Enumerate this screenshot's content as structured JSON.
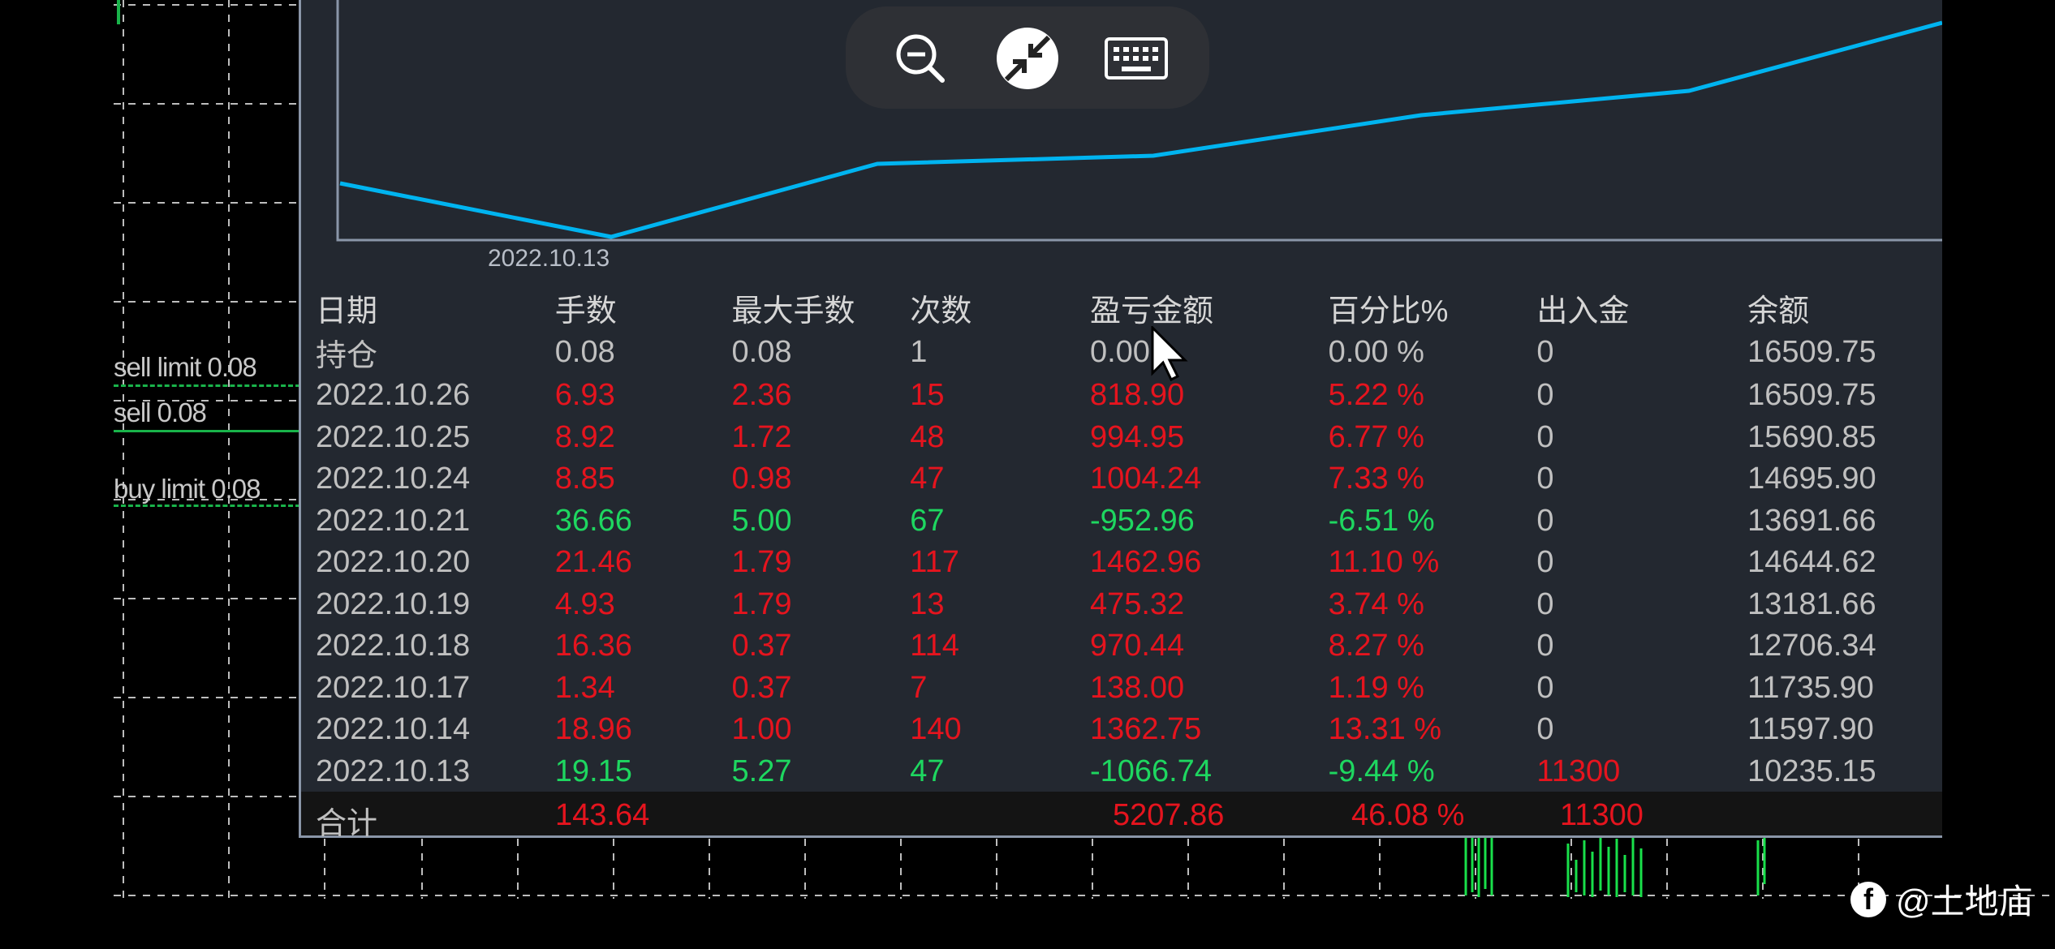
{
  "chart": {
    "date_label": "2022.10.13",
    "line_color": "#00b4f0"
  },
  "orders": [
    {
      "label": "sell limit 0.08"
    },
    {
      "label": "sell 0.08"
    },
    {
      "label": "buy limit 0.08"
    }
  ],
  "table": {
    "headers": [
      "日期",
      "手数",
      "最大手数",
      "次数",
      "盈亏金额",
      "百分比%",
      "出入金",
      "余额"
    ],
    "rows": [
      {
        "date": "持仓",
        "lots": "0.08",
        "max_lots": "0.08",
        "count": "1",
        "pnl": "0.00",
        "percent": "0.00 %",
        "deposit": "0",
        "balance": "16509.75",
        "tone": "neutral"
      },
      {
        "date": "2022.10.26",
        "lots": "6.93",
        "max_lots": "2.36",
        "count": "15",
        "pnl": "818.90",
        "percent": "5.22 %",
        "deposit": "0",
        "balance": "16509.75",
        "tone": "red"
      },
      {
        "date": "2022.10.25",
        "lots": "8.92",
        "max_lots": "1.72",
        "count": "48",
        "pnl": "994.95",
        "percent": "6.77 %",
        "deposit": "0",
        "balance": "15690.85",
        "tone": "red"
      },
      {
        "date": "2022.10.24",
        "lots": "8.85",
        "max_lots": "0.98",
        "count": "47",
        "pnl": "1004.24",
        "percent": "7.33 %",
        "deposit": "0",
        "balance": "14695.90",
        "tone": "red"
      },
      {
        "date": "2022.10.21",
        "lots": "36.66",
        "max_lots": "5.00",
        "count": "67",
        "pnl": "-952.96",
        "percent": "-6.51 %",
        "deposit": "0",
        "balance": "13691.66",
        "tone": "green"
      },
      {
        "date": "2022.10.20",
        "lots": "21.46",
        "max_lots": "1.79",
        "count": "117",
        "pnl": "1462.96",
        "percent": "11.10 %",
        "deposit": "0",
        "balance": "14644.62",
        "tone": "red"
      },
      {
        "date": "2022.10.19",
        "lots": "4.93",
        "max_lots": "1.79",
        "count": "13",
        "pnl": "475.32",
        "percent": "3.74 %",
        "deposit": "0",
        "balance": "13181.66",
        "tone": "red"
      },
      {
        "date": "2022.10.18",
        "lots": "16.36",
        "max_lots": "0.37",
        "count": "114",
        "pnl": "970.44",
        "percent": "8.27 %",
        "deposit": "0",
        "balance": "12706.34",
        "tone": "red"
      },
      {
        "date": "2022.10.17",
        "lots": "1.34",
        "max_lots": "0.37",
        "count": "7",
        "pnl": "138.00",
        "percent": "1.19 %",
        "deposit": "0",
        "balance": "11735.90",
        "tone": "red"
      },
      {
        "date": "2022.10.14",
        "lots": "18.96",
        "max_lots": "1.00",
        "count": "140",
        "pnl": "1362.75",
        "percent": "13.31 %",
        "deposit": "0",
        "balance": "11597.90",
        "tone": "red"
      },
      {
        "date": "2022.10.13",
        "lots": "19.15",
        "max_lots": "5.27",
        "count": "47",
        "pnl": "-1066.74",
        "percent": "-9.44 %",
        "deposit": "11300",
        "balance": "10235.15",
        "tone": "green",
        "deposit_tone": "red"
      }
    ],
    "total": {
      "label": "合计",
      "lots": "143.64",
      "pnl": "5207.86",
      "percent": "46.08 %",
      "deposit": "11300"
    }
  },
  "toolbar": {
    "buttons": [
      {
        "icon": "zoom-out-icon"
      },
      {
        "icon": "disconnect-icon"
      },
      {
        "icon": "keyboard-icon"
      }
    ]
  },
  "watermark": {
    "icon": "facebook-icon",
    "text": "@土地庙"
  },
  "colors": {
    "positive": "#e5141e",
    "negative": "#1ed760",
    "neutral": "#c0c0c0",
    "panel_bg": "#232830"
  }
}
